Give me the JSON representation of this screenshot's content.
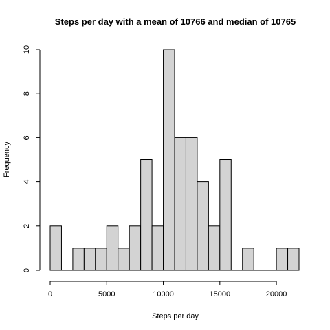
{
  "chart_data": {
    "type": "bar",
    "title": "Steps per day with a mean of 10766 and median of 10765",
    "xlabel": "Steps per day",
    "ylabel": "Frequency",
    "bin_width": 1000,
    "bin_starts": [
      0,
      1000,
      2000,
      3000,
      4000,
      5000,
      6000,
      7000,
      8000,
      9000,
      10000,
      11000,
      12000,
      13000,
      14000,
      15000,
      16000,
      17000,
      18000,
      19000,
      20000,
      21000
    ],
    "values": [
      2,
      0,
      1,
      1,
      1,
      2,
      1,
      2,
      5,
      2,
      10,
      6,
      6,
      4,
      2,
      5,
      0,
      1,
      0,
      0,
      1,
      1
    ],
    "xlim": [
      0,
      22000
    ],
    "ylim": [
      0,
      10
    ],
    "x_ticks": [
      0,
      5000,
      10000,
      15000,
      20000
    ],
    "y_ticks": [
      0,
      2,
      4,
      6,
      8,
      10
    ],
    "grid": false,
    "legend": "none",
    "bar_color": "#d3d3d3",
    "edge_color": "#000000"
  }
}
